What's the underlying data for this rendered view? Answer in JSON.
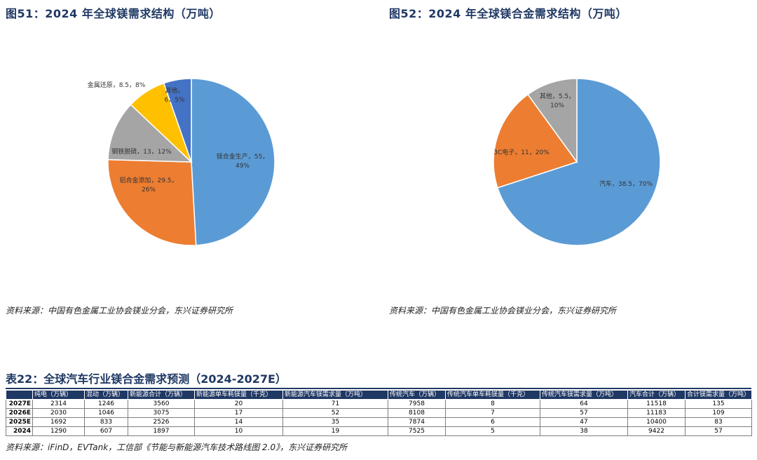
{
  "fig51": {
    "title": "图51：2024 年全球镁需求结构（万吨）",
    "source": "资料来源：中国有色金属工业协会镁业分会，东兴证券研究所",
    "chart_data": {
      "type": "pie",
      "slices": [
        {
          "name": "镁合金生产",
          "value": 55,
          "percent": "49%",
          "label_lines": [
            "镁合金生产，55，",
            "49%"
          ],
          "color": "#5b9bd5"
        },
        {
          "name": "铝合金添加",
          "value": 29.5,
          "percent": "26%",
          "label_lines": [
            "铝合金添加，29.5，",
            "26%"
          ],
          "color": "#ed7d31"
        },
        {
          "name": "钢铁脱硫",
          "value": 13,
          "percent": "12%",
          "label_lines": [
            "钢铁脱硫，13，12%"
          ],
          "color": "#a5a5a5"
        },
        {
          "name": "金属还原",
          "value": 8.5,
          "percent": "8%",
          "label_lines": [
            "金属还原，8.5，8%"
          ],
          "color": "#ffc000"
        },
        {
          "name": "其他",
          "value": 6,
          "percent": "5%",
          "label_lines": [
            "其他，",
            "6，5%"
          ],
          "color": "#4472c4"
        }
      ]
    }
  },
  "fig52": {
    "title": "图52：2024 年全球镁合金需求结构（万吨）",
    "source": "资料来源：中国有色金属工业协会镁业分会，东兴证券研究所",
    "chart_data": {
      "type": "pie",
      "slices": [
        {
          "name": "汽车",
          "value": 38.5,
          "percent": "70%",
          "label_lines": [
            "汽车，38.5，70%"
          ],
          "color": "#5b9bd5"
        },
        {
          "name": "3C电子",
          "value": 11,
          "percent": "20%",
          "label_lines": [
            "3C电子，11，20%"
          ],
          "color": "#ed7d31"
        },
        {
          "name": "其他",
          "value": 5.5,
          "percent": "10%",
          "label_lines": [
            "其他，5.5，",
            "10%"
          ],
          "color": "#a5a5a5"
        }
      ]
    }
  },
  "table": {
    "title": "表22：全球汽车行业镁合金需求预测（2024-2027E）",
    "source": "资料来源：iFinD，EVTank，工信部《节能与新能源汽车技术路线图 2.0》，东兴证券研究所",
    "chart_data": {
      "type": "table",
      "columns": [
        "",
        "纯电（万辆）",
        "混动（万辆）",
        "新能源合计（万辆）",
        "新能源单车耗镁量（千克）",
        "新能源汽车镁需求量（万吨）",
        "传统汽车（万辆）",
        "传统汽车单车耗镁量（千克）",
        "传统汽车镁需求量（万吨）",
        "汽车合计（万辆）",
        "合计镁需求量（万吨）"
      ],
      "rows": [
        [
          "2027E",
          "2314",
          "1246",
          "3560",
          "20",
          "71",
          "7958",
          "8",
          "64",
          "11518",
          "135"
        ],
        [
          "2026E",
          "2030",
          "1046",
          "3075",
          "17",
          "52",
          "8108",
          "7",
          "57",
          "11183",
          "109"
        ],
        [
          "2025E",
          "1692",
          "833",
          "2526",
          "14",
          "35",
          "7874",
          "6",
          "47",
          "10400",
          "83"
        ],
        [
          "2024",
          "1290",
          "607",
          "1897",
          "10",
          "19",
          "7525",
          "5",
          "38",
          "9422",
          "57"
        ]
      ]
    }
  }
}
